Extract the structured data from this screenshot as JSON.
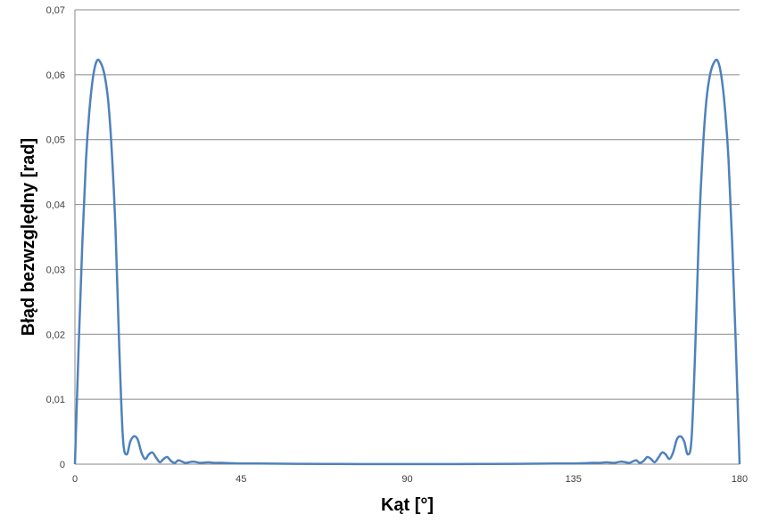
{
  "chart_data": {
    "type": "line",
    "title": "",
    "xlabel": "Kąt [°]",
    "ylabel": "Błąd bezwzględny [rad]",
    "xlim": [
      0,
      180
    ],
    "ylim": [
      0,
      0.07
    ],
    "x_ticks": [
      "0",
      "45",
      "90",
      "135",
      "180"
    ],
    "y_ticks": [
      "0",
      "0,01",
      "0,02",
      "0,03",
      "0,04",
      "0,05",
      "0,06",
      "0,07"
    ],
    "grid": "horizontal",
    "legend": "none",
    "series": [
      {
        "color": "#4f81bd",
        "x": [
          0,
          1,
          2,
          3,
          4,
          5,
          6,
          7,
          8,
          9,
          10,
          11,
          12,
          13,
          14,
          15,
          16,
          17,
          18,
          19,
          20,
          21,
          22,
          23,
          24,
          25,
          26,
          27,
          28,
          29,
          30,
          32,
          34,
          36,
          38,
          40,
          45,
          50,
          60,
          70,
          80,
          90,
          100,
          110,
          120,
          130,
          135,
          140,
          142,
          144,
          146,
          148,
          150,
          151,
          152,
          153,
          154,
          155,
          156,
          157,
          158,
          159,
          160,
          161,
          162,
          163,
          164,
          165,
          166,
          167,
          168,
          169,
          170,
          171,
          172,
          173,
          174,
          175,
          176,
          177,
          178,
          179,
          180
        ],
        "y": [
          0,
          0.018,
          0.034,
          0.047,
          0.055,
          0.06,
          0.0622,
          0.0618,
          0.06,
          0.056,
          0.048,
          0.036,
          0.018,
          0.004,
          0.0015,
          0.0035,
          0.0043,
          0.0038,
          0.0018,
          0.0008,
          0.0015,
          0.0018,
          0.001,
          0.0003,
          0.0008,
          0.0011,
          0.0005,
          0.0002,
          0.0006,
          0.0004,
          0.0002,
          0.0004,
          0.0002,
          0.0003,
          0.0002,
          0.0002,
          0.0001,
          0.0001,
          5e-05,
          3e-05,
          2e-05,
          1e-05,
          2e-05,
          3e-05,
          5e-05,
          0.0001,
          0.0001,
          0.0002,
          0.0002,
          0.0003,
          0.0002,
          0.0004,
          0.0002,
          0.0004,
          0.0006,
          0.0002,
          0.0005,
          0.0011,
          0.0008,
          0.0003,
          0.001,
          0.0018,
          0.0015,
          0.0008,
          0.0018,
          0.0038,
          0.0043,
          0.0035,
          0.0015,
          0.004,
          0.018,
          0.036,
          0.048,
          0.056,
          0.06,
          0.0618,
          0.0622,
          0.06,
          0.055,
          0.047,
          0.034,
          0.018,
          0
        ]
      }
    ]
  }
}
